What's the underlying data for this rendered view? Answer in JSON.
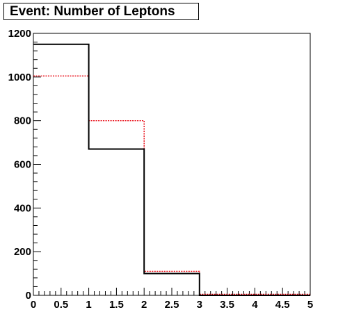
{
  "chart_data": {
    "type": "histogram",
    "title": "Event: Number of Leptons",
    "xlabel": "",
    "ylabel": "",
    "xlim": [
      0,
      5
    ],
    "ylim": [
      0,
      1200
    ],
    "x_ticks": [
      "0",
      "0.5",
      "1",
      "1.5",
      "2",
      "2.5",
      "3",
      "3.5",
      "4",
      "4.5",
      "5"
    ],
    "y_ticks": [
      "0",
      "200",
      "400",
      "600",
      "800",
      "1000",
      "1200"
    ],
    "bin_edges": [
      0,
      1,
      2,
      3,
      4,
      5
    ],
    "grid": false,
    "series": [
      {
        "values": [
          1150,
          670,
          100,
          0,
          0
        ],
        "color": "#000000",
        "line_style": "solid"
      },
      {
        "values": [
          1005,
          800,
          110,
          5,
          5
        ],
        "color": "#e8000b",
        "line_style": "dotted"
      }
    ]
  }
}
